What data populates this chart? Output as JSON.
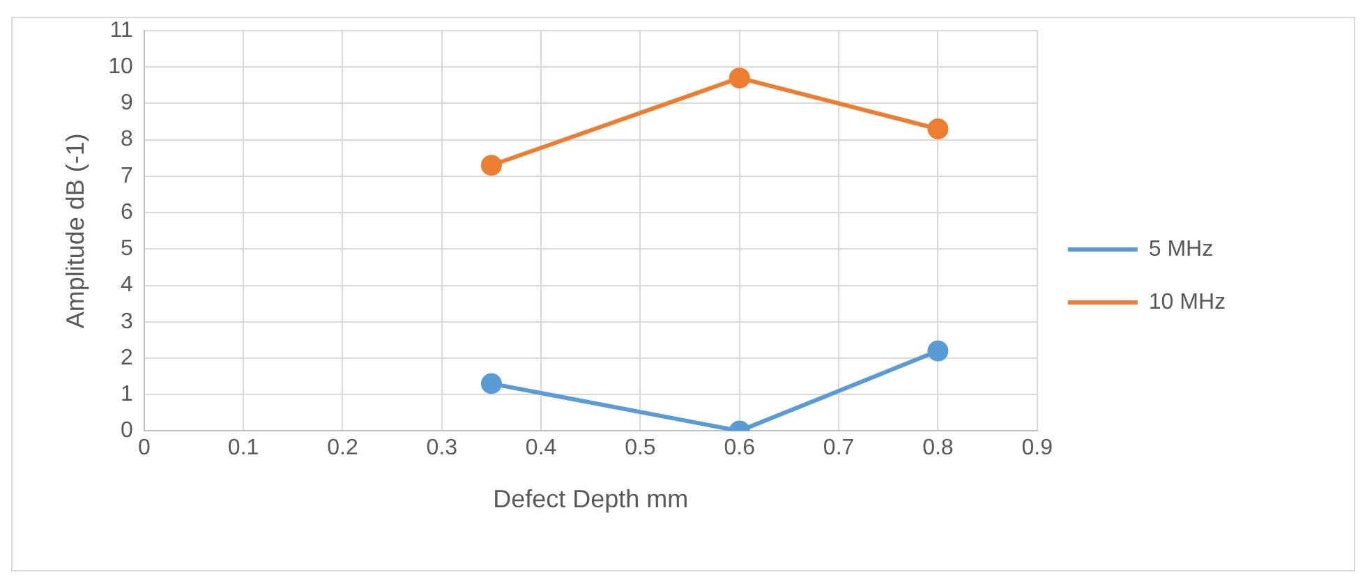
{
  "chart_data": {
    "type": "line",
    "xlabel": "Defect Depth mm",
    "ylabel": "Amplitude dB (-1)",
    "series": [
      {
        "name": "5 MHz",
        "color": "#5b9bd5",
        "x": [
          0.35,
          0.6,
          0.8
        ],
        "values": [
          1.3,
          0,
          2.2
        ]
      },
      {
        "name": "10 MHz",
        "color": "#ed7d31",
        "x": [
          0.35,
          0.6,
          0.8
        ],
        "values": [
          7.3,
          9.7,
          8.3
        ]
      }
    ],
    "xlim": [
      0,
      0.9
    ],
    "xticks": [
      0,
      0.1,
      0.2,
      0.3,
      0.4,
      0.5,
      0.6,
      0.7,
      0.8,
      0.9
    ],
    "ylim": [
      0,
      11
    ],
    "yticks": [
      0,
      1,
      2,
      3,
      4,
      5,
      6,
      7,
      8,
      9,
      10,
      11
    ],
    "grid": true,
    "legend": "right",
    "marker": "circle",
    "line_style": "solid"
  }
}
